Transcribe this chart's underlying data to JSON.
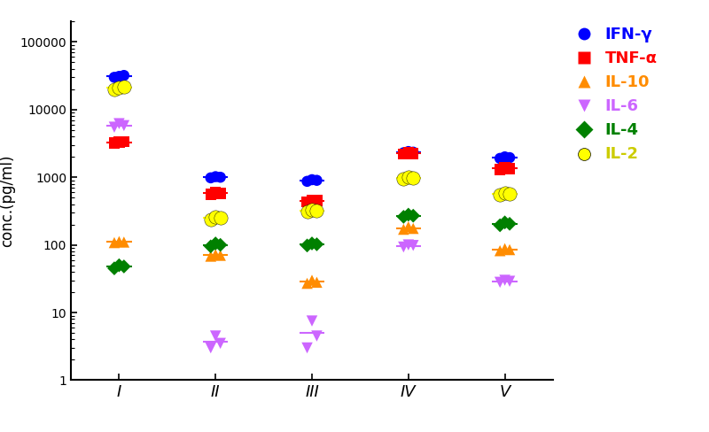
{
  "title": "",
  "ylabel": "conc.(pg/ml)",
  "xlabel": "",
  "background_color": "#ffffff",
  "categories": [
    "I",
    "II",
    "III",
    "IV",
    "V"
  ],
  "ylim": [
    1,
    200000
  ],
  "series": [
    {
      "name": "IFN-γ",
      "color": "#0000FF",
      "marker": "o",
      "markersize": 9,
      "data": [
        [
          30000,
          31000,
          32000
        ],
        [
          980,
          1020,
          1000
        ],
        [
          870,
          920,
          900
        ],
        [
          2300,
          2400,
          2350
        ],
        [
          1900,
          2000,
          1950
        ]
      ]
    },
    {
      "name": "TNF-α",
      "color": "#FF0000",
      "marker": "s",
      "markersize": 9,
      "data": [
        [
          3200,
          3300,
          3350
        ],
        [
          560,
          600,
          580
        ],
        [
          430,
          460,
          450
        ],
        [
          2200,
          2300,
          2250
        ],
        [
          1300,
          1400,
          1350
        ]
      ]
    },
    {
      "name": "IL-10",
      "color": "#FF8C00",
      "marker": "^",
      "markersize": 9,
      "data": [
        [
          108,
          112,
          110
        ],
        [
          68,
          72,
          70
        ],
        [
          27,
          30,
          28
        ],
        [
          170,
          185,
          175
        ],
        [
          82,
          88,
          85
        ]
      ]
    },
    {
      "name": "IL-6",
      "color": "#CC66FF",
      "marker": "v",
      "markersize": 9,
      "data": [
        [
          5500,
          6200,
          5800
        ],
        [
          3.0,
          4.5,
          3.5
        ],
        [
          3.0,
          7.5,
          4.5
        ],
        [
          93,
          100,
          98
        ],
        [
          28,
          30,
          29
        ]
      ]
    },
    {
      "name": "IL-4",
      "color": "#008000",
      "marker": "D",
      "markersize": 8,
      "data": [
        [
          45,
          50,
          48
        ],
        [
          95,
          105,
          100
        ],
        [
          98,
          105,
          102
        ],
        [
          260,
          280,
          270
        ],
        [
          195,
          215,
          205
        ]
      ]
    },
    {
      "name": "IL-2",
      "color": "#FFFF00",
      "marker": "o",
      "markersize": 11,
      "data": [
        [
          20000,
          21000,
          22000
        ],
        [
          240,
          260,
          250
        ],
        [
          310,
          330,
          320
        ],
        [
          950,
          1000,
          975
        ],
        [
          550,
          590,
          570
        ]
      ]
    }
  ]
}
